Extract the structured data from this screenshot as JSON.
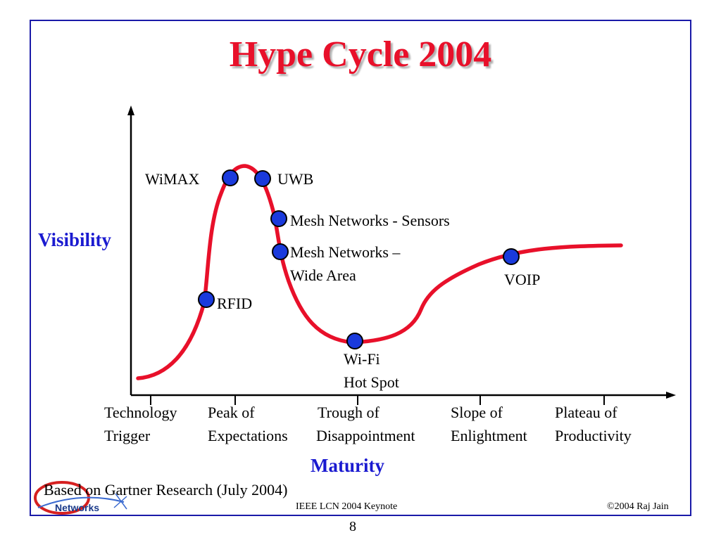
{
  "slide": {
    "title": "Hype Cycle 2004",
    "y_axis_label": "Visibility",
    "x_axis_label": "Maturity",
    "source": "Based on Gartner Research (July 2004)",
    "footer_center": "IEEE LCN 2004 Keynote",
    "footer_right": "©2004 Raj Jain",
    "page_number": "8",
    "logo_text": "Networks",
    "colors": {
      "title": "#e8102a",
      "curve": "#e8102a",
      "axis_labels": "#1a1ad0",
      "points": "#1a3adc",
      "frame": "#1a1aa8"
    }
  },
  "phases": [
    {
      "line1": "Technology",
      "line2": "Trigger"
    },
    {
      "line1": "Peak of",
      "line2": "Expectations"
    },
    {
      "line1": "Trough of",
      "line2": "Disappointment"
    },
    {
      "line1": "Slope of",
      "line2": "Enlightment"
    },
    {
      "line1": "Plateau of",
      "line2": "Productivity"
    }
  ],
  "technologies": [
    {
      "name": "WiMAX",
      "line2": ""
    },
    {
      "name": "UWB",
      "line2": ""
    },
    {
      "name": "Mesh Networks - Sensors",
      "line2": ""
    },
    {
      "name": "Mesh Networks –",
      "line2": "Wide Area"
    },
    {
      "name": "RFID",
      "line2": ""
    },
    {
      "name": "Wi-Fi",
      "line2": "Hot Spot"
    },
    {
      "name": "VOIP",
      "line2": ""
    }
  ]
}
